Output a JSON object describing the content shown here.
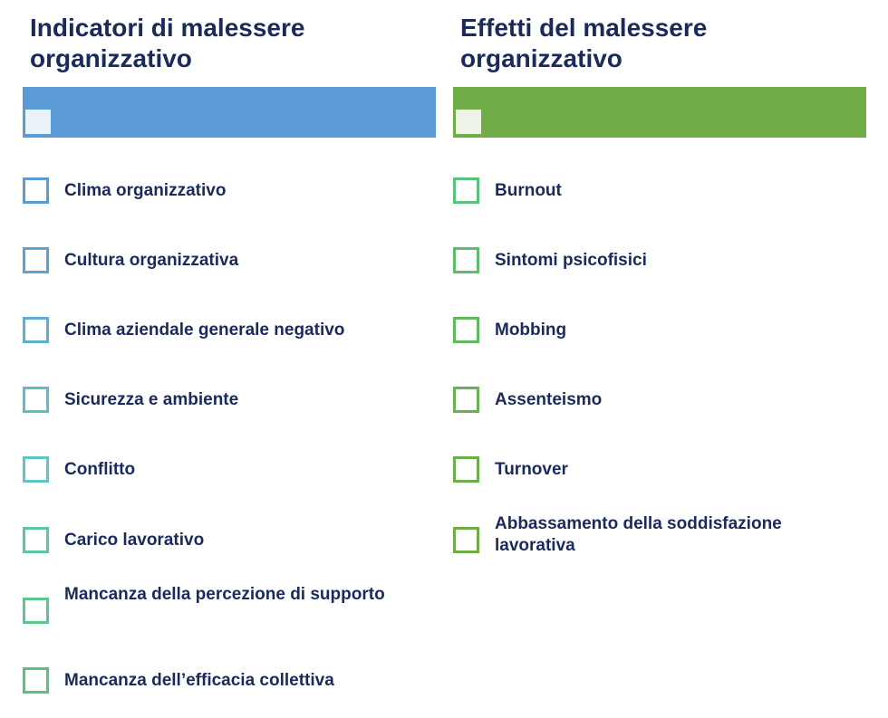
{
  "left": {
    "title": "Indicatori di malessere\norganizzativo",
    "bar_color": "#5b9bd5",
    "items": [
      {
        "label": "Clima organizzativo",
        "color": "#5b9bd5"
      },
      {
        "label": "Cultura organizzativa",
        "color": "#5ba3d3"
      },
      {
        "label": "Clima aziendale generale negativo",
        "color": "#5cb0cf"
      },
      {
        "label": "Sicurezza e ambiente",
        "color": "#5dbdc9"
      },
      {
        "label": "Conflitto",
        "color": "#5ec6c0"
      },
      {
        "label": "Carico lavorativo",
        "color": "#5cc6a7"
      },
      {
        "label": "Mancanza della percezione di supporto",
        "color": "#5ac78f"
      },
      {
        "label": "Mancanza dell’efficacia collettiva",
        "color": "#57c47b"
      }
    ]
  },
  "right": {
    "title": "Effetti del malessere\norganizzativo",
    "bar_color": "#70ad47",
    "items": [
      {
        "label": "Burnout",
        "color": "#58c27a"
      },
      {
        "label": "Sintomi psicofisici",
        "color": "#5ebc6c"
      },
      {
        "label": "Mobbing",
        "color": "#63b75e"
      },
      {
        "label": "Assenteismo",
        "color": "#67b354"
      },
      {
        "label": "Turnover",
        "color": "#6baf4c"
      },
      {
        "label": "Abbassamento della soddisfazione lavorativa",
        "color": "#70ad47"
      }
    ]
  }
}
